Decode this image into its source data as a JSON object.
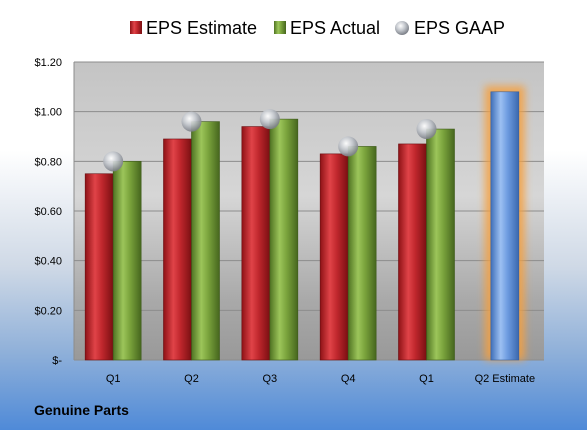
{
  "company": "Genuine Parts",
  "chart_data": {
    "type": "bar",
    "categories": [
      "Q1",
      "Q2",
      "Q3",
      "Q4",
      "Q1",
      "Q2 Estimate"
    ],
    "series": [
      {
        "name": "EPS Estimate",
        "values": [
          0.75,
          0.89,
          0.94,
          0.83,
          0.87,
          1.08
        ]
      },
      {
        "name": "EPS Actual",
        "values": [
          0.8,
          0.96,
          0.97,
          0.86,
          0.93,
          null
        ]
      },
      {
        "name": "EPS GAAP",
        "values": [
          0.8,
          0.96,
          0.97,
          0.86,
          0.93,
          null
        ]
      }
    ],
    "series_marks": [
      "bar",
      "bar",
      "marker"
    ],
    "estimate_category": "Q2 Estimate",
    "y_ticks": [
      0,
      0.2,
      0.4,
      0.6,
      0.8,
      1.0,
      1.2
    ],
    "y_tick_labels": [
      "$-",
      "$0.20",
      "$0.40",
      "$0.60",
      "$0.80",
      "$1.00",
      "$1.20"
    ],
    "ylim": [
      0,
      1.2
    ],
    "grid": true,
    "legend_position": "top",
    "colors": {
      "estimate": "#c0272d",
      "actual": "#7aa33c",
      "gaap": "#b8bcc2",
      "estimate_highlight": "#6d9be0",
      "glow": "#f5a040"
    }
  }
}
